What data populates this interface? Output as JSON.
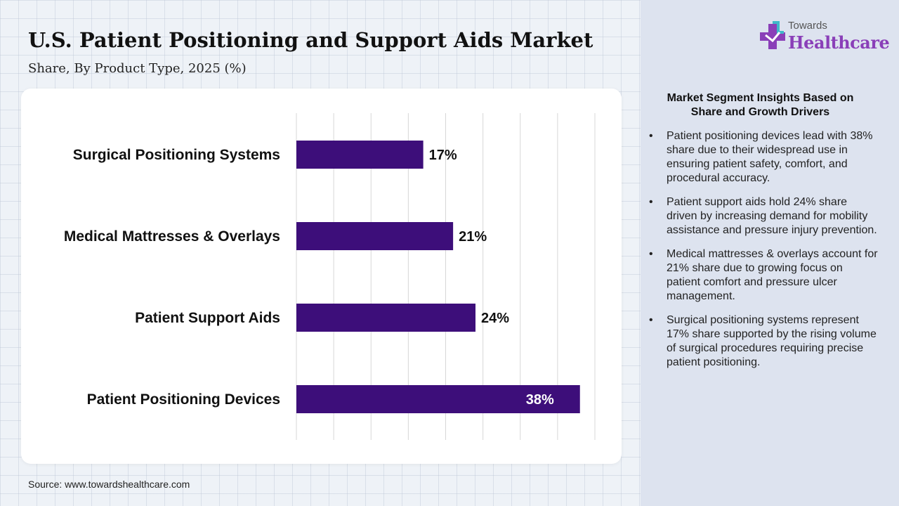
{
  "header": {
    "title": "U.S. Patient Positioning and Support Aids Market",
    "subtitle": "Share, By Product Type, 2025 (%)"
  },
  "brand": {
    "line1": "Towards",
    "line2": "Healthcare",
    "icon": "medical-cross-logo-icon",
    "colors": {
      "purple": "#8a3fb8",
      "teal": "#3fb8c9"
    }
  },
  "colors": {
    "bar": "#3d0e7a",
    "grid": "#d7d7d7",
    "card": "#ffffff",
    "sidebar": "#dde3ef"
  },
  "chart_data": {
    "type": "bar",
    "orientation": "horizontal",
    "categories": [
      "Surgical Positioning Systems",
      "Medical Mattresses & Overlays",
      "Patient Support Aids",
      "Patient Positioning Devices"
    ],
    "values": [
      17,
      21,
      24,
      38
    ],
    "value_labels": [
      "17%",
      "21%",
      "24%",
      "38%"
    ],
    "xlim": [
      0,
      40
    ],
    "grid": true,
    "gridlines_every": 5,
    "legend": "none"
  },
  "insights": {
    "title": "Market Segment Insights Based on Share and Growth Drivers",
    "bullet_symbol": "•",
    "items": [
      "Patient positioning devices lead with 38% share due to their widespread use in ensuring patient safety, comfort, and procedural accuracy.",
      "Patient support aids hold 24% share driven by increasing demand for mobility assistance and pressure injury prevention.",
      "Medical mattresses & overlays account for 21% share due to growing focus on patient comfort and pressure ulcer management.",
      "Surgical positioning systems represent 17% share supported by the rising volume of surgical procedures requiring precise patient positioning."
    ]
  },
  "footer": {
    "source": "Source: www.towardshealthcare.com"
  }
}
